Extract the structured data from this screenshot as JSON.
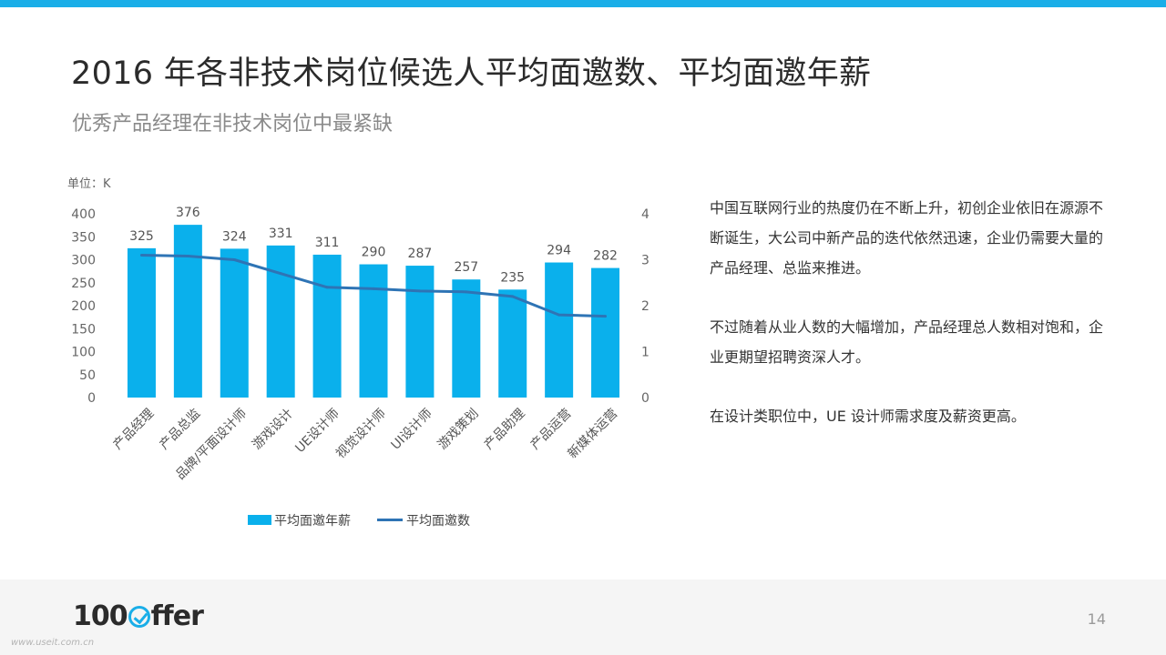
{
  "header": {
    "title": "2016 年各非技术岗位候选人平均面邀数、平均面邀年薪",
    "subtitle": "优秀产品经理在非技术岗位中最紧缺"
  },
  "chart_data": {
    "type": "bar",
    "unit_label": "单位：K",
    "categories": [
      "产品经理",
      "产品总监",
      "品牌/平面设计师",
      "游戏设计",
      "UE设计师",
      "视觉设计师",
      "UI设计师",
      "游戏策划",
      "产品助理",
      "产品运营",
      "新媒体运营"
    ],
    "series": [
      {
        "name": "平均面邀年薪",
        "type": "bar",
        "axis": "left",
        "color": "#0ab0ec",
        "values": [
          325,
          376,
          324,
          331,
          311,
          290,
          287,
          257,
          235,
          294,
          282
        ]
      },
      {
        "name": "平均面邀数",
        "type": "line",
        "axis": "right",
        "color": "#2e74b5",
        "values": [
          3.1,
          3.08,
          3.0,
          2.7,
          2.4,
          2.37,
          2.32,
          2.3,
          2.2,
          1.8,
          1.77
        ]
      }
    ],
    "y_left": {
      "min": 0,
      "max": 400,
      "ticks": [
        0,
        50,
        100,
        150,
        200,
        250,
        300,
        350,
        400
      ]
    },
    "y_right": {
      "min": 0,
      "max": 4,
      "ticks": [
        0,
        1,
        2,
        3,
        4
      ]
    },
    "legend_position": "bottom",
    "grid": false
  },
  "body": {
    "paragraphs": [
      "中国互联网行业的热度仍在不断上升，初创企业依旧在源源不断诞生，大公司中新产品的迭代依然迅速，企业仍需要大量的产品经理、总监来推进。",
      "不过随着从业人数的大幅增加，产品经理总人数相对饱和，企业更期望招聘资深人才。",
      "在设计类职位中，UE 设计师需求度及薪资更高。"
    ]
  },
  "footer": {
    "logo_prefix": "100",
    "logo_suffix": "ffer",
    "page_number": "14",
    "watermark": "www.useit.com.cn"
  },
  "colors": {
    "accent": "#1aaee8",
    "bar": "#0ab0ec",
    "line": "#2e74b5"
  }
}
